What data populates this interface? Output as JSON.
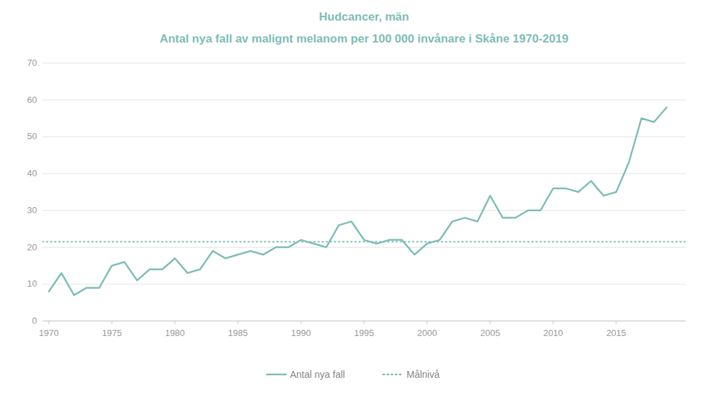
{
  "chart_data": {
    "type": "line",
    "title": "Hudcancer, män",
    "subtitle": "Antal nya fall av malignt melanom per 100 000 invånare i Skåne 1970-2019",
    "x": [
      1970,
      1971,
      1972,
      1973,
      1974,
      1975,
      1976,
      1977,
      1978,
      1979,
      1980,
      1981,
      1982,
      1983,
      1984,
      1985,
      1986,
      1987,
      1988,
      1989,
      1990,
      1991,
      1992,
      1993,
      1994,
      1995,
      1996,
      1997,
      1998,
      1999,
      2000,
      2001,
      2002,
      2003,
      2004,
      2005,
      2006,
      2007,
      2008,
      2009,
      2010,
      2011,
      2012,
      2013,
      2014,
      2015,
      2016,
      2017,
      2018,
      2019
    ],
    "series": [
      {
        "name": "Antal nya fall",
        "color": "#7DBDB5",
        "line_style": "solid",
        "values": [
          8,
          13,
          7,
          9,
          9,
          15,
          16,
          11,
          14,
          14,
          17,
          13,
          14,
          19,
          17,
          18,
          19,
          18,
          20,
          20,
          22,
          21,
          20,
          26,
          27,
          22,
          21,
          22,
          22,
          18,
          21,
          22,
          27,
          28,
          27,
          34,
          28,
          28,
          30,
          30,
          36,
          36,
          35,
          38,
          34,
          35,
          43,
          55,
          54,
          58
        ]
      }
    ],
    "target_line": {
      "name": "Målnivå",
      "value": 21.5,
      "color": "#7DBDB5",
      "line_style": "dotted"
    },
    "xlim": [
      1969.5,
      2020.5
    ],
    "xticks": [
      1970,
      1975,
      1980,
      1985,
      1990,
      1995,
      2000,
      2005,
      2010,
      2015
    ],
    "ylim": [
      0,
      70
    ],
    "yticks": [
      0,
      10,
      20,
      30,
      40,
      50,
      60,
      70
    ],
    "grid": true,
    "legend": "bottom"
  }
}
